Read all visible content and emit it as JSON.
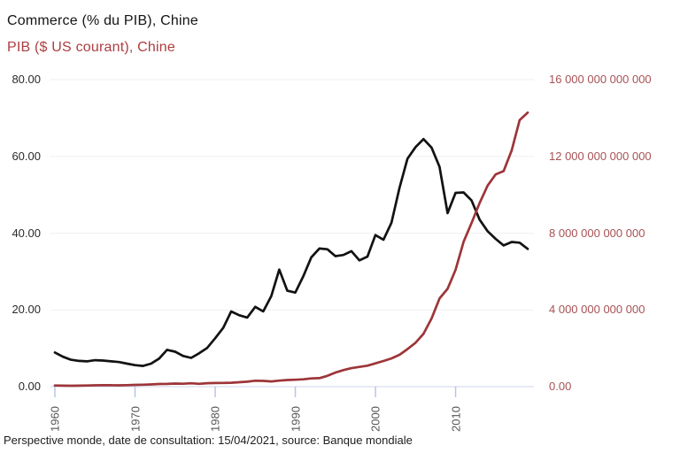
{
  "header": {
    "title_line1": "Commerce (% du PIB), Chine",
    "title_line2": "PIB ($ US courant), Chine"
  },
  "caption": "Perspective monde, date de consultation: 15/04/2021, source: Banque mondiale",
  "colors": {
    "commerce_line": "#121212",
    "pib_line": "#9d3539",
    "right_axis_text": "#a85154",
    "left_axis_text": "#2a2a2a",
    "x_axis_text": "#565656",
    "grid": "#efefef",
    "baseline": "#ccd5ea",
    "tick": "#b9c5e2"
  },
  "chart_data": {
    "type": "line",
    "title": "Commerce (% du PIB), Chine / PIB ($ US courant), Chine",
    "x": [
      1960,
      1961,
      1962,
      1963,
      1964,
      1965,
      1966,
      1967,
      1968,
      1969,
      1970,
      1971,
      1972,
      1973,
      1974,
      1975,
      1976,
      1977,
      1978,
      1979,
      1980,
      1981,
      1982,
      1983,
      1984,
      1985,
      1986,
      1987,
      1988,
      1989,
      1990,
      1991,
      1992,
      1993,
      1994,
      1995,
      1996,
      1997,
      1998,
      1999,
      2000,
      2001,
      2002,
      2003,
      2004,
      2005,
      2006,
      2007,
      2008,
      2009,
      2010,
      2011,
      2012,
      2013,
      2014,
      2015,
      2016,
      2017,
      2018,
      2019
    ],
    "series": [
      {
        "name": "Commerce (% du PIB), Chine",
        "axis": "left",
        "color": "#121212",
        "values": [
          8.9,
          7.8,
          7.0,
          6.7,
          6.6,
          6.9,
          6.8,
          6.6,
          6.4,
          6.0,
          5.6,
          5.4,
          6.0,
          7.3,
          9.6,
          9.1,
          8.0,
          7.5,
          8.7,
          10.1,
          12.6,
          15.3,
          19.6,
          18.6,
          18.0,
          20.8,
          19.6,
          23.6,
          30.5,
          25.0,
          24.5,
          28.8,
          33.7,
          36.0,
          35.8,
          34.0,
          34.3,
          35.3,
          32.9,
          33.9,
          39.5,
          38.3,
          42.7,
          51.8,
          59.4,
          62.4,
          64.5,
          62.3,
          57.3,
          45.2,
          50.5,
          50.6,
          48.5,
          43.5,
          40.5,
          38.5,
          36.8,
          37.7,
          37.5,
          35.9
        ]
      },
      {
        "name": "PIB ($ US courant), Chine",
        "axis": "right",
        "color": "#9d3539",
        "values": [
          59700000000,
          50100000000,
          47200000000,
          50700000000,
          59700000000,
          70400000000,
          76700000000,
          72900000000,
          70800000000,
          79700000000,
          92600000000,
          99800000000,
          113700000000,
          138500000000,
          144200000000,
          163400000000,
          153900000000,
          174900000000,
          149500000000,
          178300000000,
          191100000000,
          195900000000,
          205100000000,
          230700000000,
          259900000000,
          309500000000,
          300800000000,
          272900000000,
          312400000000,
          347800000000,
          360900000000,
          383400000000,
          426900000000,
          444700000000,
          564300000000,
          734500000000,
          863700000000,
          961600000000,
          1029000000000,
          1094000000000,
          1211300000000,
          1339400000000,
          1470600000000,
          1660300000000,
          1955300000000,
          2286000000000,
          2752100000000,
          3550300000000,
          4594300000000,
          5101700000000,
          6087200000000,
          7551500000000,
          8532200000000,
          9570400000000,
          10475700000000,
          11061600000000,
          11233300000000,
          12310400000000,
          13894800000000,
          14279900000000
        ]
      }
    ],
    "left_axis": {
      "min": 0,
      "max": 80,
      "tick_labels": [
        "80.00",
        "60.00",
        "40.00",
        "20.00",
        "0.00"
      ],
      "tick_values": [
        80,
        60,
        40,
        20,
        0
      ]
    },
    "right_axis": {
      "min": 0,
      "max": 16000000000000,
      "tick_labels": [
        "16 000 000 000 000",
        "12 000 000 000 000",
        "8 000 000 000 000",
        "4 000 000 000 000",
        "0.00"
      ],
      "tick_values": [
        16000000000000,
        12000000000000,
        8000000000000,
        4000000000000,
        0
      ]
    },
    "x_axis": {
      "tick_years": [
        1960,
        1970,
        1980,
        1990,
        2000,
        2010
      ]
    },
    "grid": true,
    "legend_position": "top-left-titles"
  }
}
